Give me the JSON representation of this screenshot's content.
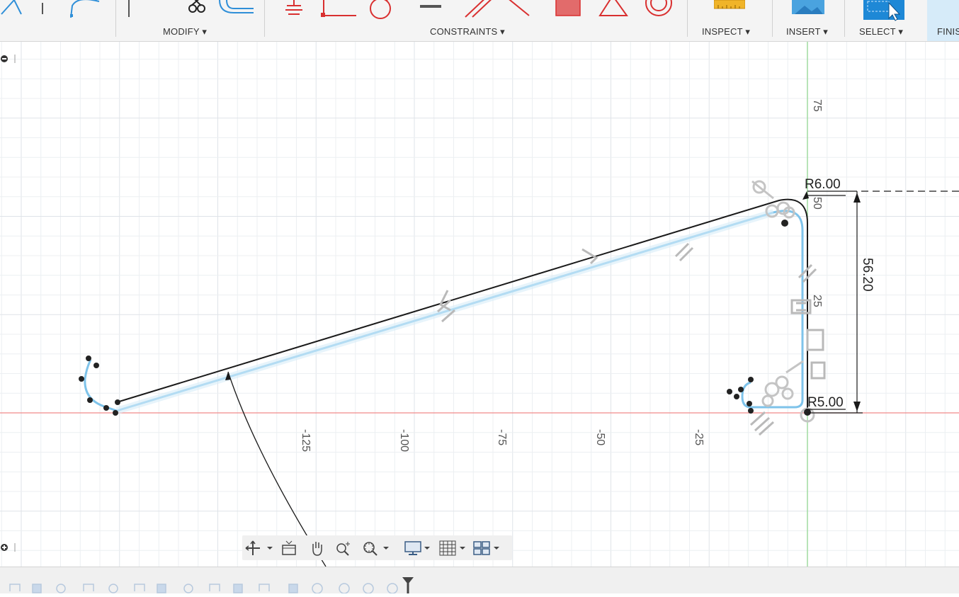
{
  "toolbar": {
    "groups": {
      "modify": "MODIFY ▾",
      "constraints": "CONSTRAINTS ▾",
      "inspect": "INSPECT ▾",
      "insert": "INSERT ▾",
      "select": "SELECT ▾",
      "finish": "FINIS"
    }
  },
  "sketch": {
    "axis_labels_x": [
      "-125",
      "-100",
      "-75",
      "-50",
      "-25"
    ],
    "axis_labels_y": [
      "75",
      "50",
      "25"
    ],
    "dimensions": {
      "radius_top": "R6.00",
      "radius_bottom": "R5.00",
      "height": "56.20"
    }
  },
  "colors": {
    "sketch_line": "#1a1a1a",
    "construction_blue": "#7ec3ea",
    "x_axis": "#f08a8a",
    "y_axis": "#9fdc9f",
    "grid_minor": "#eceff2",
    "grid_major": "#dfe3e8",
    "constraint_icon": "#b9b9b9"
  }
}
